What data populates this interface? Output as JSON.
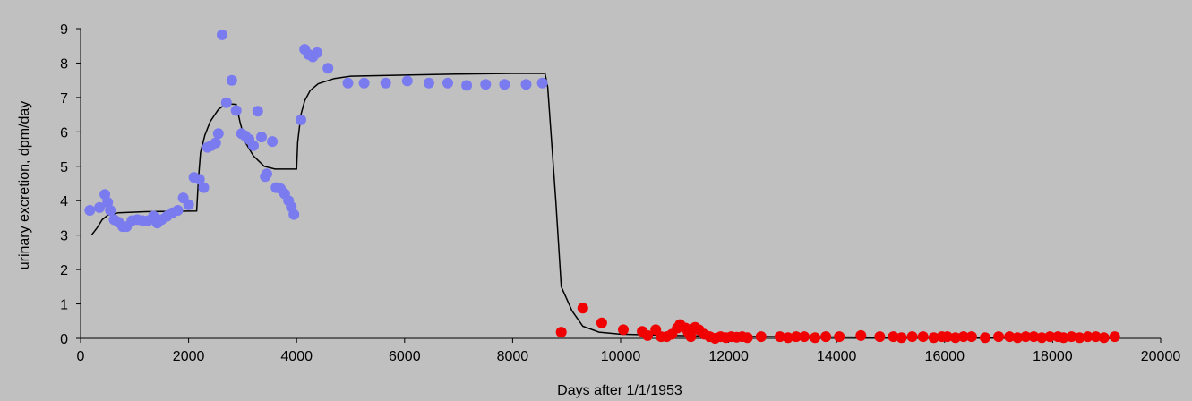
{
  "chart_data": {
    "type": "scatter",
    "title": "",
    "xlabel": "Days after 1/1/1953",
    "ylabel": "urinary excretion, dpm/day",
    "xlim": [
      0,
      20000
    ],
    "ylim": [
      0,
      9
    ],
    "xticks": [
      0,
      2000,
      4000,
      6000,
      8000,
      10000,
      12000,
      14000,
      16000,
      18000,
      20000
    ],
    "yticks": [
      0,
      1,
      2,
      3,
      4,
      5,
      6,
      7,
      8,
      9
    ],
    "grid": false,
    "legend": "none",
    "colors": {
      "background": "#c0c0c0",
      "series_blue": "#7b7bf0",
      "series_red": "#f00000",
      "model_line": "#000000"
    },
    "series": [
      {
        "color": "#7b7bf0",
        "kind": "scatter",
        "points": [
          [
            170,
            3.72
          ],
          [
            350,
            3.8
          ],
          [
            450,
            4.18
          ],
          [
            500,
            3.95
          ],
          [
            550,
            3.72
          ],
          [
            620,
            3.45
          ],
          [
            700,
            3.38
          ],
          [
            780,
            3.25
          ],
          [
            850,
            3.25
          ],
          [
            950,
            3.42
          ],
          [
            1050,
            3.45
          ],
          [
            1150,
            3.42
          ],
          [
            1250,
            3.42
          ],
          [
            1350,
            3.55
          ],
          [
            1420,
            3.35
          ],
          [
            1500,
            3.45
          ],
          [
            1600,
            3.55
          ],
          [
            1700,
            3.65
          ],
          [
            1800,
            3.72
          ],
          [
            1900,
            4.08
          ],
          [
            2000,
            3.88
          ],
          [
            2100,
            4.68
          ],
          [
            2200,
            4.62
          ],
          [
            2280,
            4.38
          ],
          [
            2350,
            5.55
          ],
          [
            2420,
            5.6
          ],
          [
            2500,
            5.68
          ],
          [
            2550,
            5.95
          ],
          [
            2620,
            8.82
          ],
          [
            2700,
            6.85
          ],
          [
            2800,
            7.5
          ],
          [
            2880,
            6.62
          ],
          [
            2980,
            5.95
          ],
          [
            3050,
            5.88
          ],
          [
            3120,
            5.78
          ],
          [
            3200,
            5.6
          ],
          [
            3280,
            6.6
          ],
          [
            3350,
            5.85
          ],
          [
            3420,
            4.7
          ],
          [
            3450,
            4.78
          ],
          [
            3550,
            5.72
          ],
          [
            3620,
            4.38
          ],
          [
            3700,
            4.35
          ],
          [
            3780,
            4.2
          ],
          [
            3850,
            4.0
          ],
          [
            3900,
            3.82
          ],
          [
            3950,
            3.6
          ],
          [
            4080,
            6.35
          ],
          [
            4150,
            8.4
          ],
          [
            4220,
            8.25
          ],
          [
            4300,
            8.18
          ],
          [
            4380,
            8.3
          ],
          [
            4580,
            7.85
          ],
          [
            4950,
            7.42
          ],
          [
            5250,
            7.42
          ],
          [
            5650,
            7.42
          ],
          [
            6050,
            7.48
          ],
          [
            6450,
            7.42
          ],
          [
            6800,
            7.42
          ],
          [
            7150,
            7.35
          ],
          [
            7500,
            7.38
          ],
          [
            7850,
            7.38
          ],
          [
            8250,
            7.38
          ],
          [
            8550,
            7.42
          ]
        ]
      },
      {
        "color": "#f00000",
        "kind": "scatter",
        "points": [
          [
            8900,
            0.18
          ],
          [
            9300,
            0.88
          ],
          [
            9650,
            0.45
          ],
          [
            10050,
            0.25
          ],
          [
            10400,
            0.2
          ],
          [
            10500,
            0.08
          ],
          [
            10650,
            0.25
          ],
          [
            10750,
            0.05
          ],
          [
            10850,
            0.05
          ],
          [
            10950,
            0.12
          ],
          [
            11050,
            0.3
          ],
          [
            11100,
            0.4
          ],
          [
            11200,
            0.3
          ],
          [
            11250,
            0.18
          ],
          [
            11300,
            0.05
          ],
          [
            11380,
            0.32
          ],
          [
            11450,
            0.25
          ],
          [
            11550,
            0.12
          ],
          [
            11650,
            0.05
          ],
          [
            11750,
            0.0
          ],
          [
            11850,
            0.05
          ],
          [
            11950,
            0.02
          ],
          [
            12050,
            0.05
          ],
          [
            12150,
            0.03
          ],
          [
            12250,
            0.05
          ],
          [
            12350,
            0.02
          ],
          [
            12600,
            0.05
          ],
          [
            12950,
            0.05
          ],
          [
            13100,
            0.02
          ],
          [
            13250,
            0.05
          ],
          [
            13400,
            0.05
          ],
          [
            13600,
            0.02
          ],
          [
            13800,
            0.05
          ],
          [
            14050,
            0.05
          ],
          [
            14450,
            0.08
          ],
          [
            14800,
            0.05
          ],
          [
            15050,
            0.05
          ],
          [
            15200,
            0.02
          ],
          [
            15400,
            0.05
          ],
          [
            15600,
            0.05
          ],
          [
            15800,
            0.02
          ],
          [
            15950,
            0.05
          ],
          [
            16050,
            0.05
          ],
          [
            16200,
            0.02
          ],
          [
            16350,
            0.05
          ],
          [
            16500,
            0.05
          ],
          [
            16750,
            0.02
          ],
          [
            17000,
            0.05
          ],
          [
            17200,
            0.05
          ],
          [
            17350,
            0.02
          ],
          [
            17500,
            0.05
          ],
          [
            17650,
            0.05
          ],
          [
            17800,
            0.02
          ],
          [
            17950,
            0.05
          ],
          [
            18100,
            0.05
          ],
          [
            18200,
            0.02
          ],
          [
            18350,
            0.05
          ],
          [
            18500,
            0.02
          ],
          [
            18650,
            0.05
          ],
          [
            18800,
            0.05
          ],
          [
            18950,
            0.02
          ],
          [
            19150,
            0.05
          ]
        ]
      },
      {
        "color": "#000000",
        "kind": "line",
        "points": [
          [
            200,
            3.0
          ],
          [
            300,
            3.2
          ],
          [
            400,
            3.45
          ],
          [
            500,
            3.58
          ],
          [
            700,
            3.65
          ],
          [
            1200,
            3.68
          ],
          [
            2150,
            3.7
          ],
          [
            2180,
            4.6
          ],
          [
            2220,
            5.4
          ],
          [
            2300,
            5.9
          ],
          [
            2400,
            6.3
          ],
          [
            2550,
            6.65
          ],
          [
            2700,
            6.82
          ],
          [
            2880,
            6.8
          ],
          [
            2950,
            6.3
          ],
          [
            3050,
            5.7
          ],
          [
            3200,
            5.3
          ],
          [
            3400,
            5.0
          ],
          [
            3600,
            4.92
          ],
          [
            4000,
            4.92
          ],
          [
            4020,
            5.7
          ],
          [
            4080,
            6.5
          ],
          [
            4150,
            6.9
          ],
          [
            4250,
            7.2
          ],
          [
            4400,
            7.4
          ],
          [
            4700,
            7.55
          ],
          [
            5000,
            7.62
          ],
          [
            6000,
            7.65
          ],
          [
            7000,
            7.68
          ],
          [
            8000,
            7.7
          ],
          [
            8600,
            7.7
          ],
          [
            8650,
            7.3
          ],
          [
            8700,
            6.2
          ],
          [
            8800,
            4.0
          ],
          [
            8900,
            1.5
          ],
          [
            9100,
            0.8
          ],
          [
            9300,
            0.35
          ],
          [
            9600,
            0.18
          ],
          [
            10000,
            0.12
          ],
          [
            11000,
            0.08
          ],
          [
            12000,
            0.06
          ],
          [
            14000,
            0.04
          ],
          [
            16000,
            0.02
          ],
          [
            18000,
            0.01
          ],
          [
            19200,
            0.0
          ]
        ]
      }
    ]
  }
}
